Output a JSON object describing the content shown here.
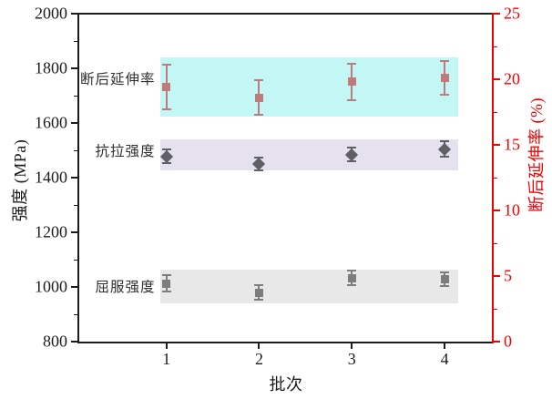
{
  "figure": {
    "background": "#ffffff"
  },
  "chart_data": {
    "type": "scatter",
    "title": "",
    "xlabel": "批次",
    "ylabel_left": "强度 (MPa)",
    "ylabel_right": "断后延伸率 (%)",
    "x": [
      1,
      2,
      3,
      4
    ],
    "x_tick_labels": [
      "1",
      "2",
      "3",
      "4"
    ],
    "xlim": [
      0.06,
      4.51
    ],
    "ylim_left": [
      800,
      2000
    ],
    "ylim_right": [
      0,
      25
    ],
    "y_left_ticks": [
      800,
      1000,
      1200,
      1400,
      1600,
      1800,
      2000
    ],
    "y_left_minor_step": 100,
    "y_right_ticks": [
      0,
      5,
      10,
      15,
      20,
      25
    ],
    "y_right_minor_step": 2.5,
    "grid": false,
    "legend": "in-plot-series-labels",
    "band_x_range": [
      0.93,
      4.15
    ],
    "series": [
      {
        "name": "断后延伸率",
        "axis": "right",
        "unit": "%",
        "marker": "square",
        "marker_color": "#c1797b",
        "band_color": "#c3f7f6",
        "band_range_mpa": [
          1625,
          1840
        ],
        "label_anchor_mpa": 1763,
        "values": [
          19.4,
          18.6,
          19.8,
          20.1
        ],
        "errors": [
          1.7,
          1.3,
          1.4,
          1.3
        ]
      },
      {
        "name": "抗拉强度",
        "axis": "left",
        "unit": "MPa",
        "marker": "diamond",
        "marker_color": "#5f5f66",
        "band_color": "#e6e1ef",
        "band_range_mpa": [
          1427,
          1540
        ],
        "label_anchor_mpa": 1500,
        "values": [
          1478,
          1450,
          1485,
          1505
        ],
        "errors": [
          25,
          22,
          26,
          28
        ]
      },
      {
        "name": "屈服强度",
        "axis": "left",
        "unit": "MPa",
        "marker": "square",
        "marker_color": "#7d7d7d",
        "band_color": "#e8e8e8",
        "band_range_mpa": [
          940,
          1065
        ],
        "label_anchor_mpa": 1003,
        "values": [
          1012,
          980,
          1033,
          1028
        ],
        "errors": [
          30,
          27,
          27,
          26
        ]
      }
    ],
    "colors": {
      "left_axis": "#1c1c1c",
      "right_axis": "#f20000",
      "tick_label": "#1c1c1c",
      "series_label_text": "#2f2f2f"
    }
  }
}
